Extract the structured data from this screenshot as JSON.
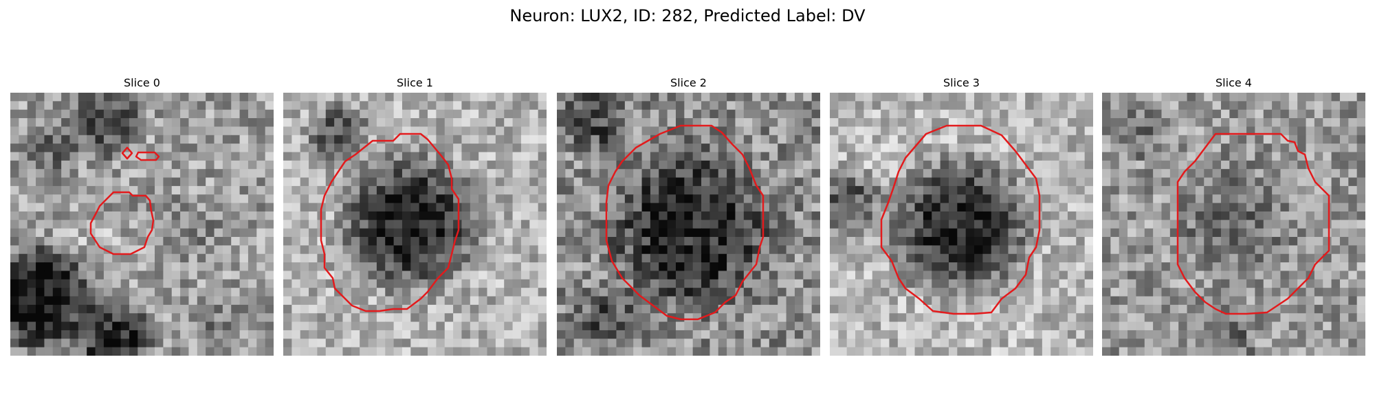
{
  "figure": {
    "title": "Neuron: LUX2, ID: 282, Predicted Label: DV"
  },
  "colors": {
    "contour": "#e31a1c",
    "background": "#ffffff"
  },
  "panels": [
    {
      "title": "Slice 0"
    },
    {
      "title": "Slice 1"
    },
    {
      "title": "Slice 2"
    },
    {
      "title": "Slice 3"
    },
    {
      "title": "Slice 4"
    }
  ]
}
